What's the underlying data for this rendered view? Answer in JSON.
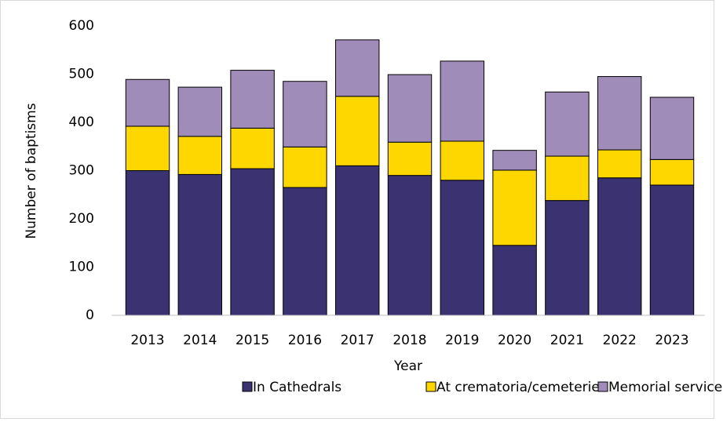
{
  "chart_data": {
    "type": "stacked_bar",
    "x_label": "Year",
    "y_label": "Number of baptisms",
    "categories": [
      "2013",
      "2014",
      "2015",
      "2016",
      "2017",
      "2018",
      "2019",
      "2020",
      "2021",
      "2022",
      "2023"
    ],
    "series": [
      {
        "name": "In Cathedrals",
        "color": "#3b3272",
        "values": [
          300,
          292,
          304,
          265,
          310,
          290,
          280,
          145,
          238,
          285,
          270
        ]
      },
      {
        "name": "At crematoria/cemeteries",
        "color": "#ffd700",
        "values": [
          92,
          79,
          84,
          84,
          144,
          69,
          81,
          156,
          92,
          58,
          53
        ]
      },
      {
        "name": "Memorial services",
        "color": "#a08cb8",
        "values": [
          97,
          102,
          120,
          136,
          117,
          140,
          166,
          41,
          133,
          152,
          129
        ]
      }
    ],
    "ylim": [
      0,
      600
    ],
    "yticks": [
      0,
      100,
      200,
      300,
      400,
      500,
      600
    ],
    "grid": false,
    "legend": "bottom"
  }
}
